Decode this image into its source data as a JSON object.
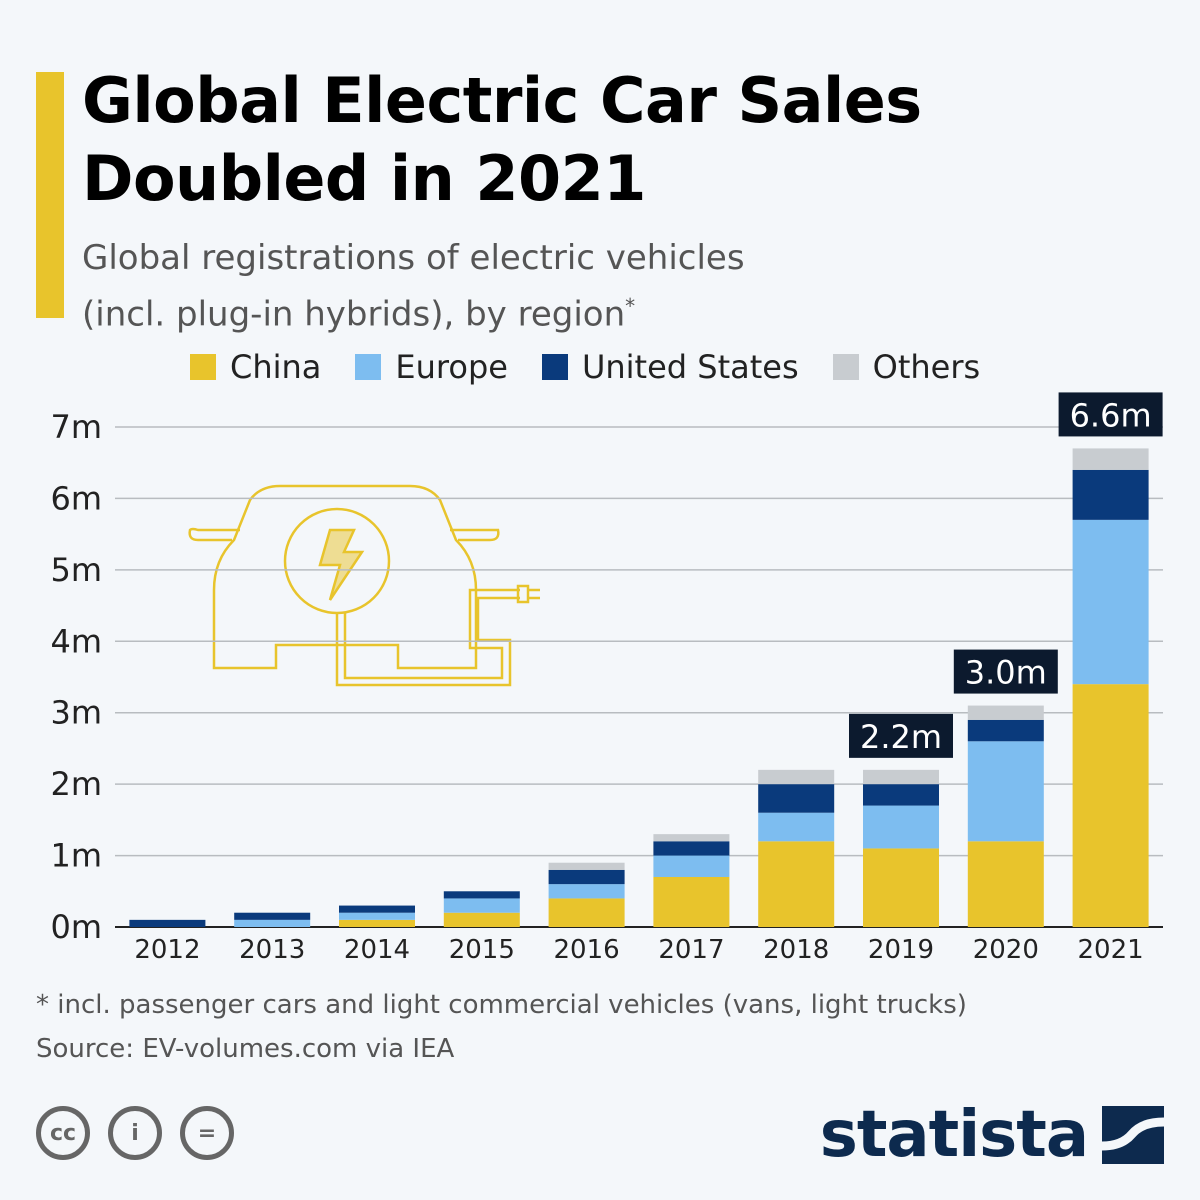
{
  "title": "Global Electric Car Sales Doubled in 2021",
  "subtitle_line1": "Global registrations of electric vehicles",
  "subtitle_line2": "(incl. plug-in hybrids), by region",
  "subtitle_mark": "*",
  "footnote": "* incl. passenger cars and light commercial vehicles (vans, light trucks)",
  "source": "Source: EV-volumes.com via IEA",
  "brand": "statista",
  "license_icons": [
    "cc-icon",
    "attribution-icon",
    "no-derivatives-icon"
  ],
  "chart_data": {
    "type": "bar",
    "stacked": true,
    "categories": [
      "2012",
      "2013",
      "2014",
      "2015",
      "2016",
      "2017",
      "2018",
      "2019",
      "2020",
      "2021"
    ],
    "series": [
      {
        "name": "China",
        "color": "#e8c42c",
        "values": [
          0,
          0,
          0.1,
          0.2,
          0.4,
          0.7,
          1.2,
          1.1,
          1.2,
          3.4
        ]
      },
      {
        "name": "Europe",
        "color": "#7dbdf0",
        "values": [
          0,
          0.1,
          0.1,
          0.2,
          0.2,
          0.3,
          0.4,
          0.6,
          1.4,
          2.3
        ]
      },
      {
        "name": "United States",
        "color": "#0a3a7c",
        "values": [
          0.1,
          0.1,
          0.1,
          0.1,
          0.2,
          0.2,
          0.4,
          0.3,
          0.3,
          0.7
        ]
      },
      {
        "name": "Others",
        "color": "#c8ccd0",
        "values": [
          0,
          0,
          0,
          0,
          0.1,
          0.1,
          0.2,
          0.2,
          0.2,
          0.3
        ]
      }
    ],
    "yticks": [
      "0m",
      "1m",
      "2m",
      "3m",
      "4m",
      "5m",
      "6m",
      "7m"
    ],
    "ylim": [
      0,
      7
    ],
    "grid": true,
    "legend": "top",
    "annotations": [
      {
        "category": "2019",
        "label": "2.2m"
      },
      {
        "category": "2020",
        "label": "3.0m"
      },
      {
        "category": "2021",
        "label": "6.6m"
      }
    ]
  }
}
